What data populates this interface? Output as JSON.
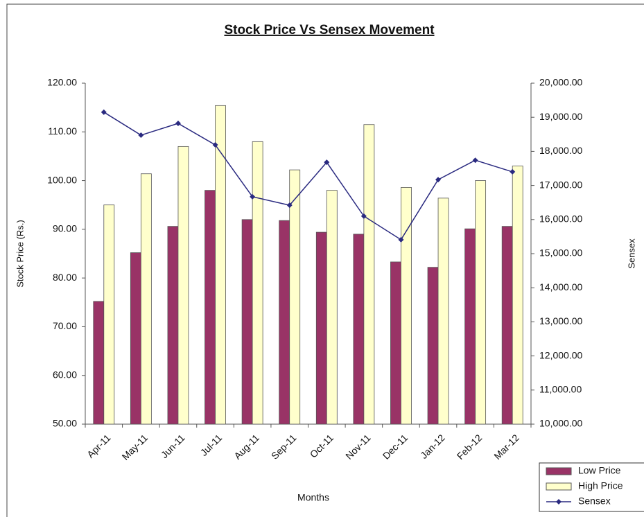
{
  "chart_data": {
    "type": "bar_line",
    "title": "Stock Price Vs Sensex Movement",
    "x_label": "Months",
    "y_label": "Stock Price (Rs.)",
    "y2_label": "Sensex",
    "categories": [
      "Apr-11",
      "May-11",
      "Jun-11",
      "Jul-11",
      "Aug-11",
      "Sep-11",
      "Oct-11",
      "Nov-11",
      "Dec-11",
      "Jan-12",
      "Feb-12",
      "Mar-12"
    ],
    "series": [
      {
        "name": "Low Price",
        "type": "bar",
        "color": "#993366",
        "values": [
          75.2,
          85.2,
          90.6,
          98,
          92,
          91.8,
          89.4,
          89,
          83.3,
          82.2,
          90.1,
          90.6
        ]
      },
      {
        "name": "High Price",
        "type": "bar",
        "color": "#ffffcc",
        "values": [
          95,
          101.4,
          107,
          115.4,
          108,
          102.2,
          98,
          111.5,
          98.6,
          96.4,
          100,
          103
        ]
      },
      {
        "name": "Sensex",
        "type": "line",
        "axis": "y2",
        "color": "#2a2a80",
        "values": [
          19150,
          18475,
          18820,
          18190,
          16670,
          16420,
          17680,
          16100,
          15410,
          17170,
          17740,
          17400
        ]
      }
    ],
    "ylim": [
      50,
      120
    ],
    "yticks": [
      {
        "value": 50,
        "label": "50.00"
      },
      {
        "value": 60,
        "label": "60.00"
      },
      {
        "value": 70,
        "label": "70.00"
      },
      {
        "value": 80,
        "label": "80.00"
      },
      {
        "value": 90,
        "label": "90.00"
      },
      {
        "value": 100,
        "label": "100.00"
      },
      {
        "value": 110,
        "label": "110.00"
      },
      {
        "value": 120,
        "label": "120.00"
      }
    ],
    "y2lim": [
      10000,
      20000
    ],
    "y2ticks": [
      {
        "value": 10000,
        "label": "10,000.00"
      },
      {
        "value": 11000,
        "label": "11,000.00"
      },
      {
        "value": 12000,
        "label": "12,000.00"
      },
      {
        "value": 13000,
        "label": "13,000.00"
      },
      {
        "value": 14000,
        "label": "14,000.00"
      },
      {
        "value": 15000,
        "label": "15,000.00"
      },
      {
        "value": 16000,
        "label": "16,000.00"
      },
      {
        "value": 17000,
        "label": "17,000.00"
      },
      {
        "value": 18000,
        "label": "18,000.00"
      },
      {
        "value": 19000,
        "label": "19,000.00"
      },
      {
        "value": 20000,
        "label": "20,000.00"
      }
    ],
    "grid": false,
    "legend": "bottom-right"
  }
}
